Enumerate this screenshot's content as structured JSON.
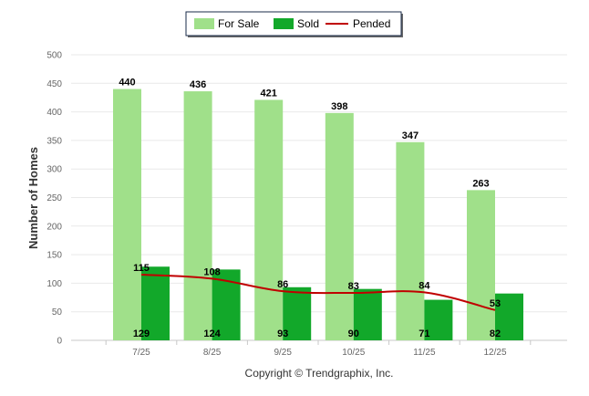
{
  "chart_data": {
    "type": "bar",
    "categories": [
      "7/25",
      "8/25",
      "9/25",
      "10/25",
      "11/25",
      "12/25"
    ],
    "series": [
      {
        "name": "For Sale",
        "kind": "bar",
        "color": "#a0e08a",
        "values": [
          440,
          436,
          421,
          398,
          347,
          263
        ]
      },
      {
        "name": "Sold",
        "kind": "bar",
        "color": "#12a82a",
        "values": [
          129,
          124,
          93,
          90,
          71,
          82
        ]
      },
      {
        "name": "Pended",
        "kind": "line",
        "color": "#c00000",
        "values": [
          115,
          108,
          86,
          83,
          84,
          53
        ]
      }
    ],
    "ylabel": "Number of Homes",
    "ylim": [
      0,
      500
    ],
    "yticks": [
      0,
      50,
      100,
      150,
      200,
      250,
      300,
      350,
      400,
      450,
      500
    ],
    "grid": true,
    "legend_position": "top-center"
  },
  "credit": "Copyright © Trendgraphix, Inc."
}
